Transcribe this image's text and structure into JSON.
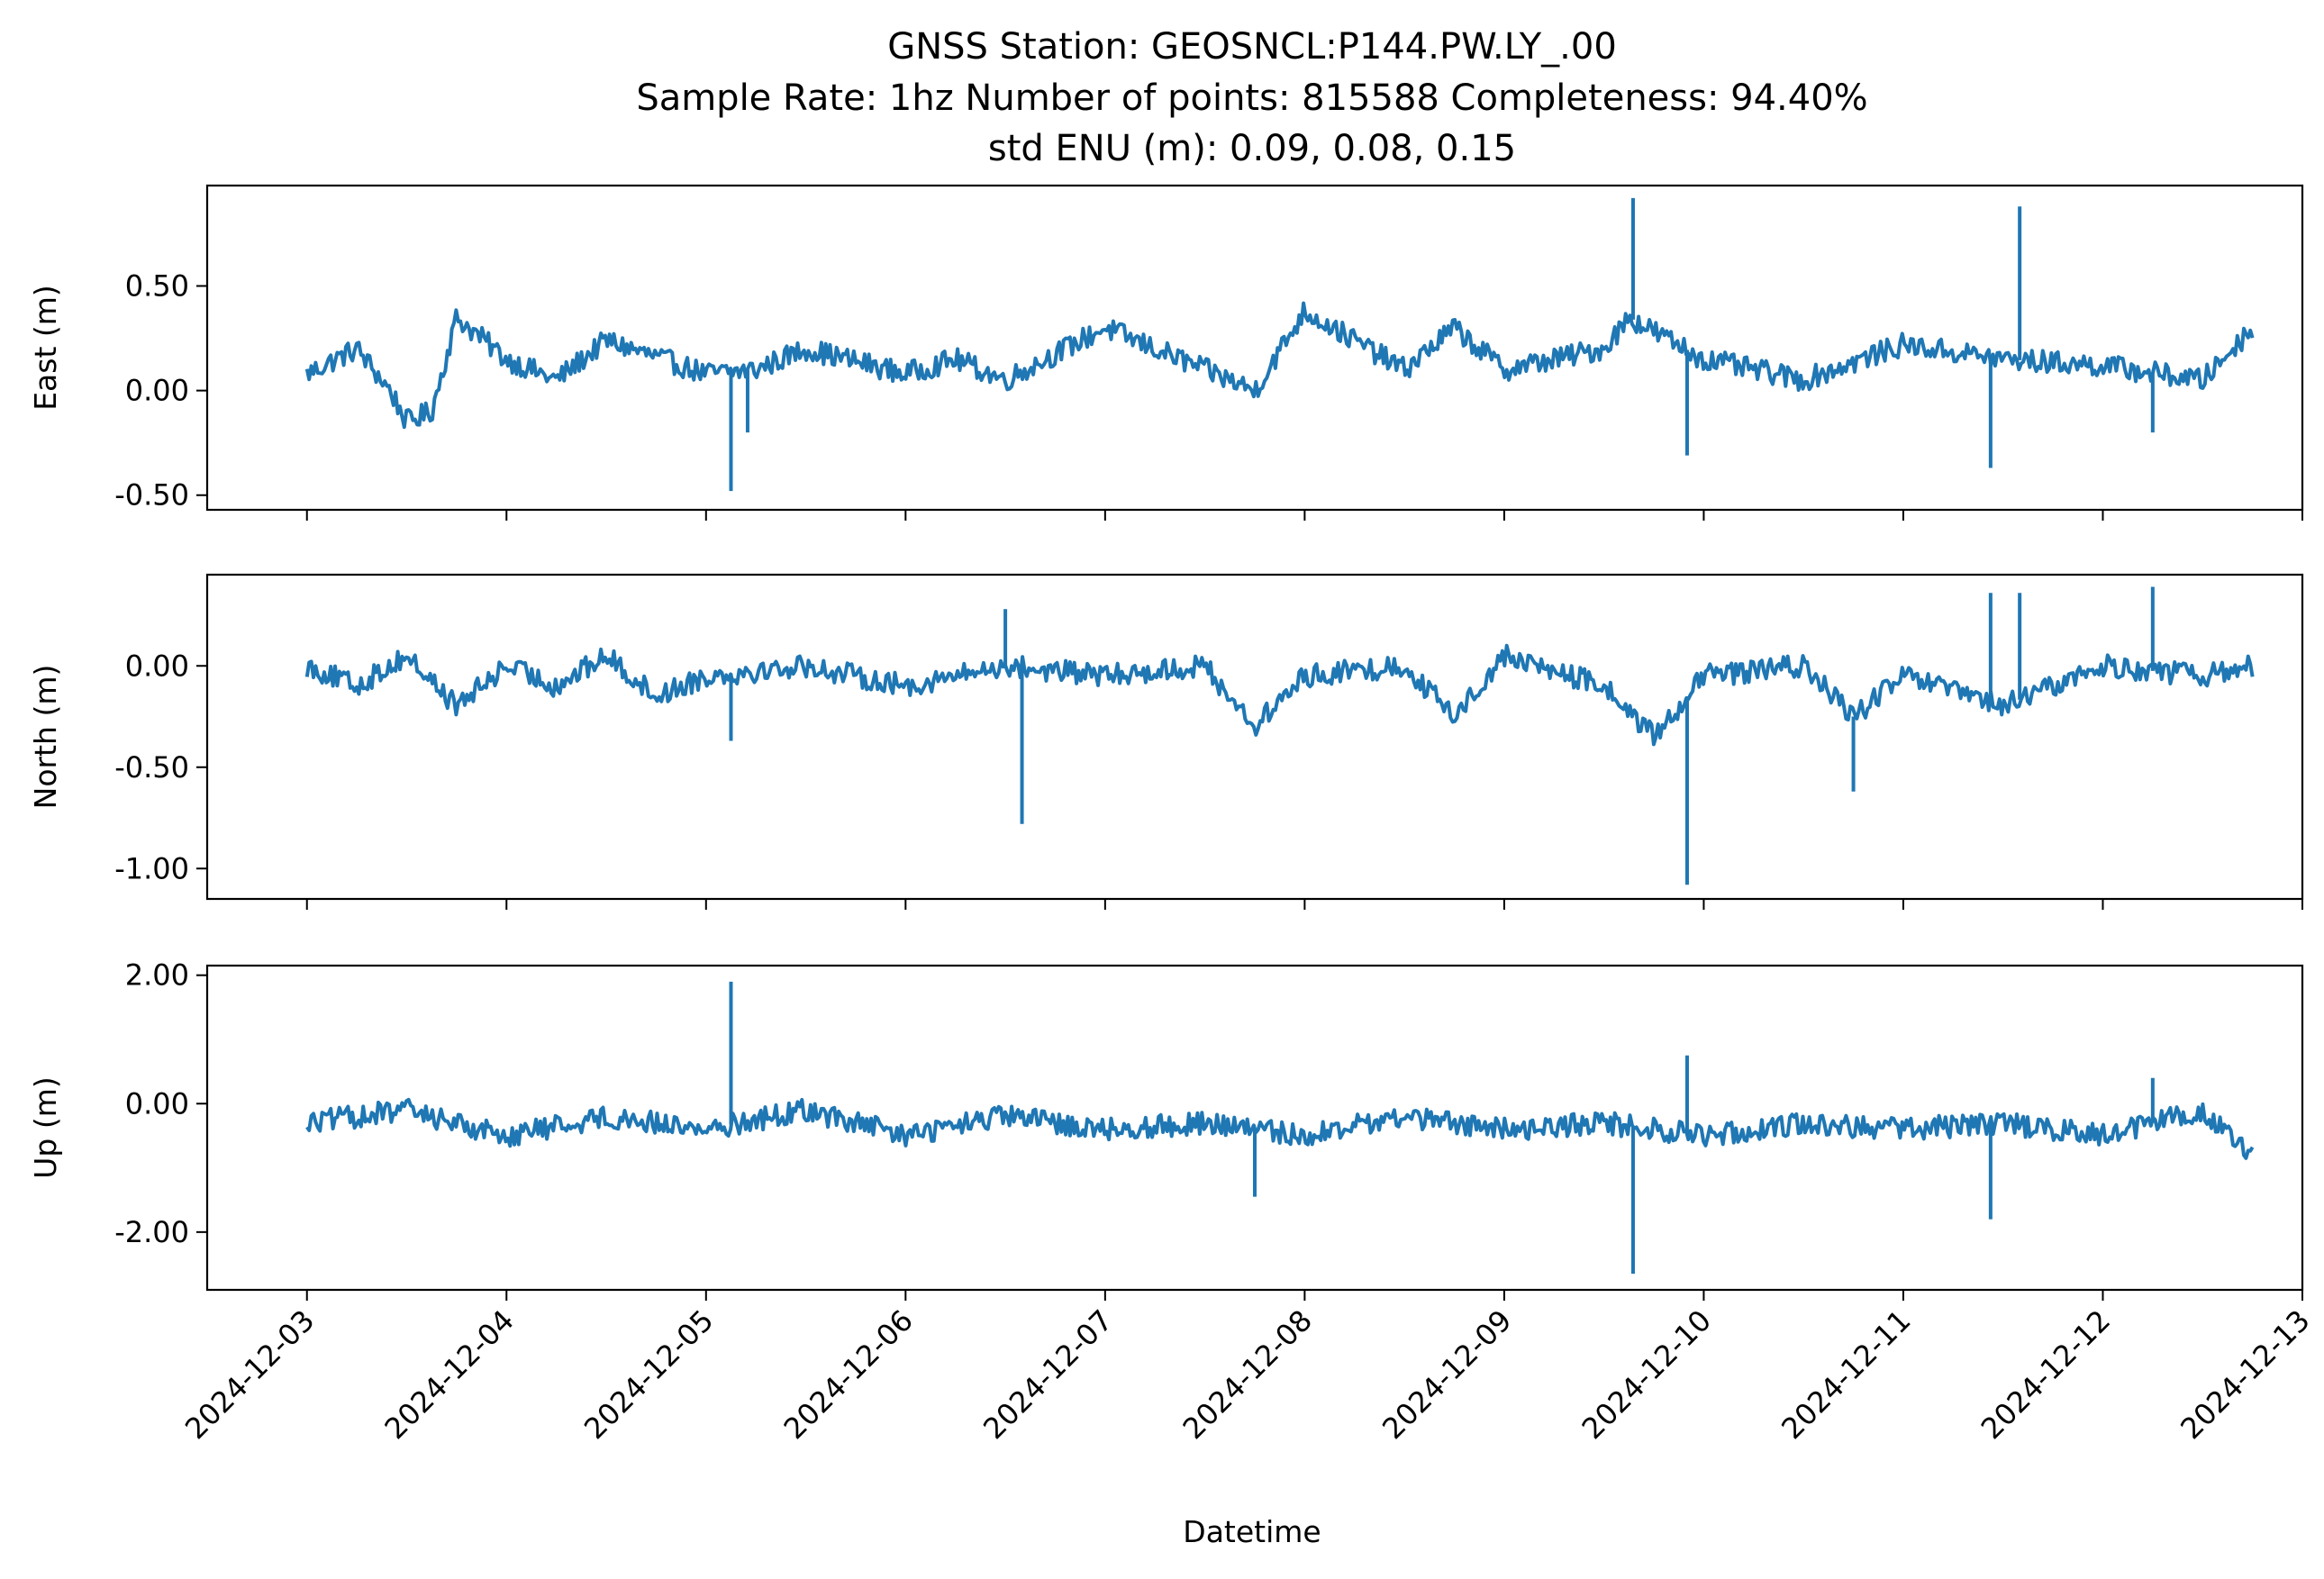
{
  "chart_data": {
    "type": "line",
    "title_lines": [
      "GNSS Station: GEOSNCL:P144.PW.LY_.00",
      "Sample Rate: 1hz   Number of points: 815588    Completeness:  94.40%",
      "std ENU (m):  0.09, 0.08, 0.15"
    ],
    "xlabel": "Datetime",
    "x_ticks": [
      "2024-12-03",
      "2024-12-04",
      "2024-12-05",
      "2024-12-06",
      "2024-12-07",
      "2024-12-08",
      "2024-12-09",
      "2024-12-10",
      "2024-12-11",
      "2024-12-12",
      "2024-12-13"
    ],
    "x_range": [
      "2024-12-02T12:00",
      "2024-12-13T00:00"
    ],
    "line_color": "#1f77b4",
    "panels": [
      {
        "ylabel": "East (m)",
        "ylim": [
          -0.57,
          0.98
        ],
        "y_ticks": [
          -0.5,
          0.0,
          0.5
        ],
        "y_tick_labels": [
          "-0.50",
          "0.00",
          "0.50"
        ],
        "series": {
          "x": [
            "2024-12-03T00:00",
            "2024-12-03T06:00",
            "2024-12-03T10:00",
            "2024-12-03T12:00",
            "2024-12-03T15:00",
            "2024-12-03T18:00",
            "2024-12-04T00:00",
            "2024-12-04T06:00",
            "2024-12-04T12:00",
            "2024-12-05T00:00",
            "2024-12-05T06:00",
            "2024-12-05T12:00",
            "2024-12-06T00:00",
            "2024-12-06T06:00",
            "2024-12-06T12:00",
            "2024-12-07T00:00",
            "2024-12-07T12:00",
            "2024-12-07T18:00",
            "2024-12-08T00:00",
            "2024-12-08T12:00",
            "2024-12-08T18:00",
            "2024-12-09T00:00",
            "2024-12-09T12:00",
            "2024-12-09T15:00",
            "2024-12-10T00:00",
            "2024-12-10T12:00",
            "2024-12-11T00:00",
            "2024-12-11T12:00",
            "2024-12-12T00:00",
            "2024-12-12T12:00",
            "2024-12-12T18:00"
          ],
          "y": [
            0.08,
            0.2,
            0.0,
            -0.15,
            -0.1,
            0.35,
            0.15,
            0.05,
            0.24,
            0.08,
            0.1,
            0.2,
            0.08,
            0.15,
            0.05,
            0.3,
            0.1,
            0.0,
            0.38,
            0.1,
            0.3,
            0.1,
            0.2,
            0.35,
            0.15,
            0.05,
            0.22,
            0.15,
            0.12,
            0.05,
            0.3
          ]
        },
        "spikes": [
          {
            "x": "2024-12-05T03:00",
            "y": -0.48
          },
          {
            "x": "2024-12-05T05:00",
            "y": -0.2
          },
          {
            "x": "2024-12-09T15:30",
            "y": 0.92
          },
          {
            "x": "2024-12-09T22:00",
            "y": -0.31
          },
          {
            "x": "2024-12-11T10:30",
            "y": -0.37
          },
          {
            "x": "2024-12-11T14:00",
            "y": 0.88
          },
          {
            "x": "2024-12-12T06:00",
            "y": -0.2
          }
        ]
      },
      {
        "ylabel": "North (m)",
        "ylim": [
          -1.15,
          0.45
        ],
        "y_ticks": [
          -1.0,
          -0.5,
          0.0
        ],
        "y_tick_labels": [
          "-1.00",
          "-0.50",
          "0.00"
        ],
        "series": {
          "x": [
            "2024-12-03T00:00",
            "2024-12-03T06:00",
            "2024-12-03T12:00",
            "2024-12-03T18:00",
            "2024-12-04T00:00",
            "2024-12-04T06:00",
            "2024-12-04T12:00",
            "2024-12-04T18:00",
            "2024-12-05T00:00",
            "2024-12-05T12:00",
            "2024-12-06T00:00",
            "2024-12-06T12:00",
            "2024-12-07T00:00",
            "2024-12-07T12:00",
            "2024-12-07T18:00",
            "2024-12-08T00:00",
            "2024-12-08T12:00",
            "2024-12-08T18:00",
            "2024-12-09T00:00",
            "2024-12-09T12:00",
            "2024-12-09T18:00",
            "2024-12-10T00:00",
            "2024-12-10T12:00",
            "2024-12-10T18:00",
            "2024-12-11T00:00",
            "2024-12-11T12:00",
            "2024-12-12T00:00",
            "2024-12-12T12:00",
            "2024-12-12T18:00"
          ],
          "y": [
            0.0,
            -0.1,
            0.05,
            -0.2,
            0.0,
            -0.1,
            0.05,
            -0.15,
            -0.05,
            0.0,
            -0.1,
            0.0,
            -0.05,
            0.0,
            -0.3,
            -0.05,
            0.0,
            -0.25,
            0.05,
            -0.1,
            -0.35,
            -0.05,
            0.0,
            -0.25,
            -0.05,
            -0.2,
            0.0,
            -0.05,
            0.0
          ]
        },
        "spikes": [
          {
            "x": "2024-12-05T03:00",
            "y": -0.37
          },
          {
            "x": "2024-12-06T14:00",
            "y": -0.78
          },
          {
            "x": "2024-12-06T12:00",
            "y": 0.28
          },
          {
            "x": "2024-12-09T22:00",
            "y": -1.08
          },
          {
            "x": "2024-12-10T18:00",
            "y": -0.62
          },
          {
            "x": "2024-12-11T10:30",
            "y": 0.36
          },
          {
            "x": "2024-12-11T14:00",
            "y": 0.36
          },
          {
            "x": "2024-12-12T06:00",
            "y": 0.39
          }
        ]
      },
      {
        "ylabel": "Up (m)",
        "ylim": [
          -2.9,
          2.15
        ],
        "y_ticks": [
          -2.0,
          0.0,
          2.0
        ],
        "y_tick_labels": [
          "-2.00",
          "0.00",
          "2.00"
        ],
        "series": {
          "x": [
            "2024-12-03T00:00",
            "2024-12-03T06:00",
            "2024-12-03T12:00",
            "2024-12-04T00:00",
            "2024-12-04T12:00",
            "2024-12-05T00:00",
            "2024-12-05T12:00",
            "2024-12-06T00:00",
            "2024-12-06T12:00",
            "2024-12-07T00:00",
            "2024-12-07T12:00",
            "2024-12-08T00:00",
            "2024-12-08T12:00",
            "2024-12-09T00:00",
            "2024-12-09T12:00",
            "2024-12-10T00:00",
            "2024-12-10T12:00",
            "2024-12-11T00:00",
            "2024-12-11T12:00",
            "2024-12-12T00:00",
            "2024-12-12T12:00",
            "2024-12-12T18:00"
          ],
          "y": [
            -0.3,
            -0.2,
            -0.1,
            -0.5,
            -0.2,
            -0.4,
            -0.1,
            -0.5,
            -0.2,
            -0.4,
            -0.3,
            -0.5,
            -0.2,
            -0.4,
            -0.3,
            -0.5,
            -0.3,
            -0.4,
            -0.3,
            -0.5,
            -0.1,
            -0.85
          ]
        },
        "spikes": [
          {
            "x": "2024-12-05T03:00",
            "y": 1.9
          },
          {
            "x": "2024-12-07T18:00",
            "y": -1.45
          },
          {
            "x": "2024-12-09T15:30",
            "y": -2.65
          },
          {
            "x": "2024-12-09T22:00",
            "y": 0.75
          },
          {
            "x": "2024-12-11T10:30",
            "y": -1.8
          },
          {
            "x": "2024-12-12T06:00",
            "y": 0.4
          }
        ]
      }
    ]
  }
}
